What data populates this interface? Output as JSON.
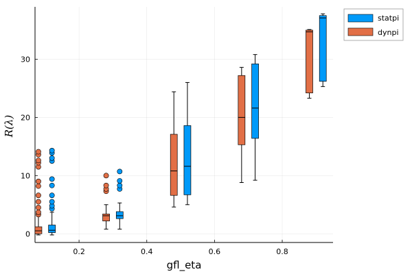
{
  "chart_data": {
    "type": "box",
    "xlabel": "gfl_eta",
    "ylabel": "R(λ)",
    "xlim": [
      0.07,
      0.95
    ],
    "ylim": [
      -1.5,
      39
    ],
    "xticks": [
      0.2,
      0.4,
      0.6,
      0.8
    ],
    "xtick_labels": [
      "0.2",
      "0.4",
      "0.6",
      "0.8"
    ],
    "yticks": [
      0,
      10,
      20,
      30
    ],
    "ytick_labels": [
      "0",
      "10",
      "20",
      "30"
    ],
    "grid": true,
    "legend": "top-right",
    "series": [
      {
        "name": "statpi",
        "color": "#009af9",
        "offset": 0.02,
        "boxes": [
          {
            "x": 0.1,
            "whisker_low": -0.2,
            "q1": 0.2,
            "median": 0.6,
            "q3": 1.5,
            "whisker_high": 3.7,
            "outliers": [
              4.3,
              4.8,
              5.5,
              6.6,
              8.3,
              9.4,
              12.5,
              13.0,
              13.9,
              14.3
            ]
          },
          {
            "x": 0.3,
            "whisker_low": 0.8,
            "q1": 2.6,
            "median": 3.1,
            "q3": 3.8,
            "whisker_high": 5.3,
            "outliers": [
              7.7,
              8.3,
              9.1,
              10.7
            ]
          },
          {
            "x": 0.5,
            "whisker_low": 5.0,
            "q1": 6.7,
            "median": 11.6,
            "q3": 18.6,
            "whisker_high": 26.0,
            "outliers": []
          },
          {
            "x": 0.7,
            "whisker_low": 9.2,
            "q1": 16.4,
            "median": 21.6,
            "q3": 29.2,
            "whisker_high": 30.8,
            "outliers": []
          },
          {
            "x": 0.9,
            "whisker_low": 25.3,
            "q1": 26.2,
            "median": 37.1,
            "q3": 37.5,
            "whisker_high": 37.8,
            "outliers": []
          }
        ]
      },
      {
        "name": "dynpi",
        "color": "#e26f46",
        "offset": -0.02,
        "boxes": [
          {
            "x": 0.1,
            "whisker_low": -0.2,
            "q1": 0.0,
            "median": 0.5,
            "q3": 1.2,
            "whisker_high": 3.0,
            "outliers": [
              3.3,
              3.7,
              4.5,
              5.5,
              6.6,
              8.2,
              9.0,
              11.5,
              12.2,
              12.6,
              13.6,
              14.1
            ]
          },
          {
            "x": 0.3,
            "whisker_low": 0.8,
            "q1": 2.2,
            "median": 3.1,
            "q3": 3.4,
            "whisker_high": 5.0,
            "outliers": [
              7.3,
              7.7,
              8.3,
              10.0
            ]
          },
          {
            "x": 0.5,
            "whisker_low": 4.6,
            "q1": 6.6,
            "median": 10.8,
            "q3": 17.1,
            "whisker_high": 24.4,
            "outliers": []
          },
          {
            "x": 0.7,
            "whisker_low": 8.8,
            "q1": 15.3,
            "median": 20.0,
            "q3": 27.2,
            "whisker_high": 28.6,
            "outliers": []
          },
          {
            "x": 0.9,
            "whisker_low": 23.3,
            "q1": 24.2,
            "median": 34.7,
            "q3": 35.0,
            "whisker_high": 35.1,
            "outliers": []
          }
        ]
      }
    ]
  }
}
